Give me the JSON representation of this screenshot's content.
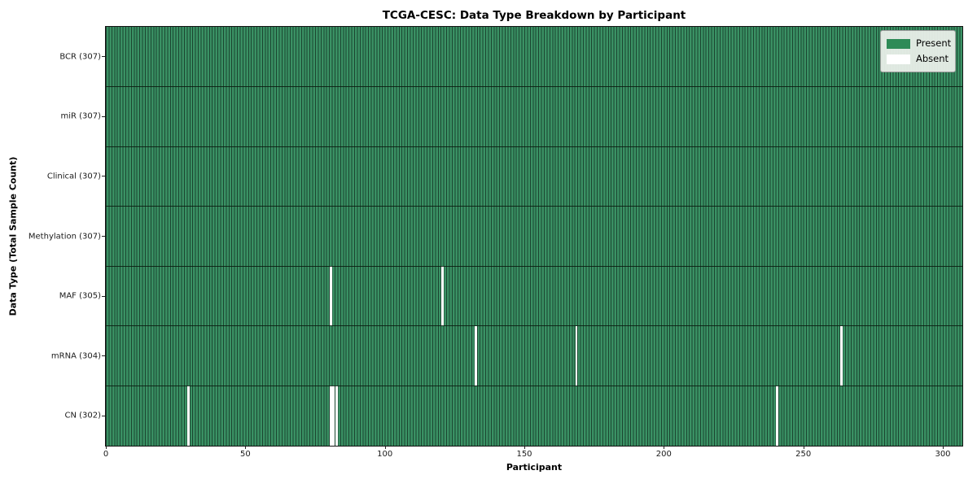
{
  "chart_data": {
    "type": "heatmap",
    "title": "TCGA-CESC: Data Type Breakdown by Participant",
    "xlabel": "Participant",
    "ylabel": "Data Type (Total Sample Count)",
    "n_participants": 307,
    "x_ticks": [
      0,
      50,
      100,
      150,
      200,
      250,
      300
    ],
    "xlim": [
      0,
      307
    ],
    "grid": false,
    "legend_position": "upper right",
    "legend": [
      {
        "label": "Present",
        "color": "#2e8b57"
      },
      {
        "label": "Absent",
        "color": "#ffffff"
      }
    ],
    "rows": [
      {
        "label": "BCR (307)",
        "name": "BCR",
        "total": 307,
        "absent_participants": []
      },
      {
        "label": "miR (307)",
        "name": "miR",
        "total": 307,
        "absent_participants": []
      },
      {
        "label": "Clinical (307)",
        "name": "Clinical",
        "total": 307,
        "absent_participants": []
      },
      {
        "label": "Methylation (307)",
        "name": "Methylation",
        "total": 307,
        "absent_participants": []
      },
      {
        "label": "MAF (305)",
        "name": "MAF",
        "total": 305,
        "absent_participants": [
          80,
          120
        ]
      },
      {
        "label": "mRNA (304)",
        "name": "mRNA",
        "total": 304,
        "absent_participants": [
          132,
          168,
          263
        ]
      },
      {
        "label": "CN (302)",
        "name": "CN",
        "total": 302,
        "absent_participants": [
          29,
          80,
          81,
          82,
          240
        ]
      }
    ],
    "colors": {
      "present_fill": "#3a9164",
      "cell_edge": "#1b4530",
      "absent_fill": "#ffffff",
      "row_divider": "#0f1f14",
      "axis_text": "#1a1a1a"
    }
  }
}
